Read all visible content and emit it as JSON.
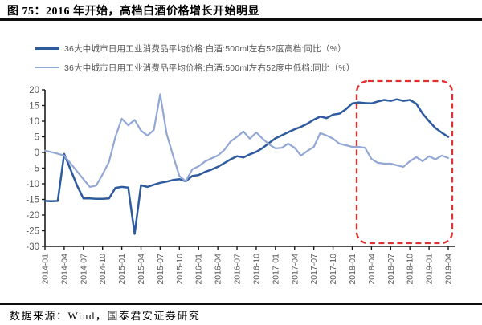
{
  "header": {
    "title": "图 75：2016 年开始，高档白酒价格增长开始明显"
  },
  "footer": {
    "source": "数据来源：Wind，国泰君安证券研究"
  },
  "chart_data": {
    "type": "line",
    "title": "",
    "xlabel": "",
    "ylabel": "",
    "grid": false,
    "legend_position": "top-left",
    "x_start": "2014-01",
    "x_interval": "monthly",
    "x_tick_labels": [
      "2014-01",
      "2014-04",
      "2014-07",
      "2014-10",
      "2015-01",
      "2015-04",
      "2015-07",
      "2015-10",
      "2016-01",
      "2016-04",
      "2016-07",
      "2016-10",
      "2017-01",
      "2017-04",
      "2017-07",
      "2017-10",
      "2018-01",
      "2018-04",
      "2018-07",
      "2018-10",
      "2019-01",
      "2019-04"
    ],
    "y_ticks": [
      20,
      15,
      10,
      5,
      0,
      -5,
      -10,
      -15,
      -20,
      -25,
      -30
    ],
    "y_range": [
      -30,
      20
    ],
    "axis_color": "#1a1a1a",
    "tick_label_color": "#595959",
    "series": [
      {
        "name": "36大中城市日用工业消费品平均价格:白酒:500ml左右52度高档:同比（%）",
        "color": "#2E5B9D",
        "values": [
          -15.5,
          -15.6,
          -15.5,
          -0.5,
          -5.5,
          -10.5,
          -14.7,
          -14.7,
          -14.8,
          -14.8,
          -14.7,
          -11.3,
          -11.0,
          -11.2,
          -26.0,
          -10.5,
          -11.0,
          -10.3,
          -9.7,
          -9.3,
          -8.8,
          -8.5,
          -9.2,
          -7.5,
          -7.2,
          -6.2,
          -5.5,
          -4.6,
          -3.4,
          -2.2,
          -1.2,
          -1.6,
          -0.6,
          0.2,
          1.4,
          3.0,
          4.5,
          5.5,
          6.5,
          7.4,
          8.2,
          9.2,
          10.5,
          11.5,
          11.0,
          12.1,
          12.4,
          13.8,
          15.7,
          16.0,
          15.8,
          15.7,
          16.3,
          16.8,
          16.5,
          17.0,
          16.5,
          16.8,
          15.6,
          12.4,
          10.0,
          7.8,
          6.3,
          5.0
        ]
      },
      {
        "name": "36大中城市日用工业消费品平均价格:白酒:500ml左右52度中低档:同比（%）",
        "color": "#92A7D4",
        "values": [
          0.6,
          0.1,
          -0.4,
          -1.0,
          -3.5,
          -6.0,
          -8.5,
          -11.0,
          -10.6,
          -7.0,
          -3.0,
          5.0,
          10.8,
          8.7,
          10.4,
          7.0,
          5.4,
          7.2,
          18.6,
          6.0,
          -1.0,
          -7.5,
          -9.2,
          -5.4,
          -4.4,
          -2.9,
          -1.9,
          -1.0,
          0.8,
          3.5,
          5.0,
          6.7,
          4.4,
          6.4,
          4.4,
          2.6,
          1.3,
          1.5,
          2.8,
          1.5,
          -1.0,
          0.5,
          1.8,
          6.2,
          5.4,
          4.4,
          2.8,
          2.3,
          1.8,
          1.8,
          1.5,
          -2.1,
          -3.3,
          -3.6,
          -3.6,
          -4.1,
          -4.6,
          -2.8,
          -1.5,
          -2.8,
          -1.2,
          -2.2,
          -1.0,
          -1.8
        ]
      }
    ],
    "annotation": {
      "type": "dashed-rounded-box",
      "color": "#E03131",
      "x_from": "2018-01",
      "x_to": "2019-04"
    }
  }
}
